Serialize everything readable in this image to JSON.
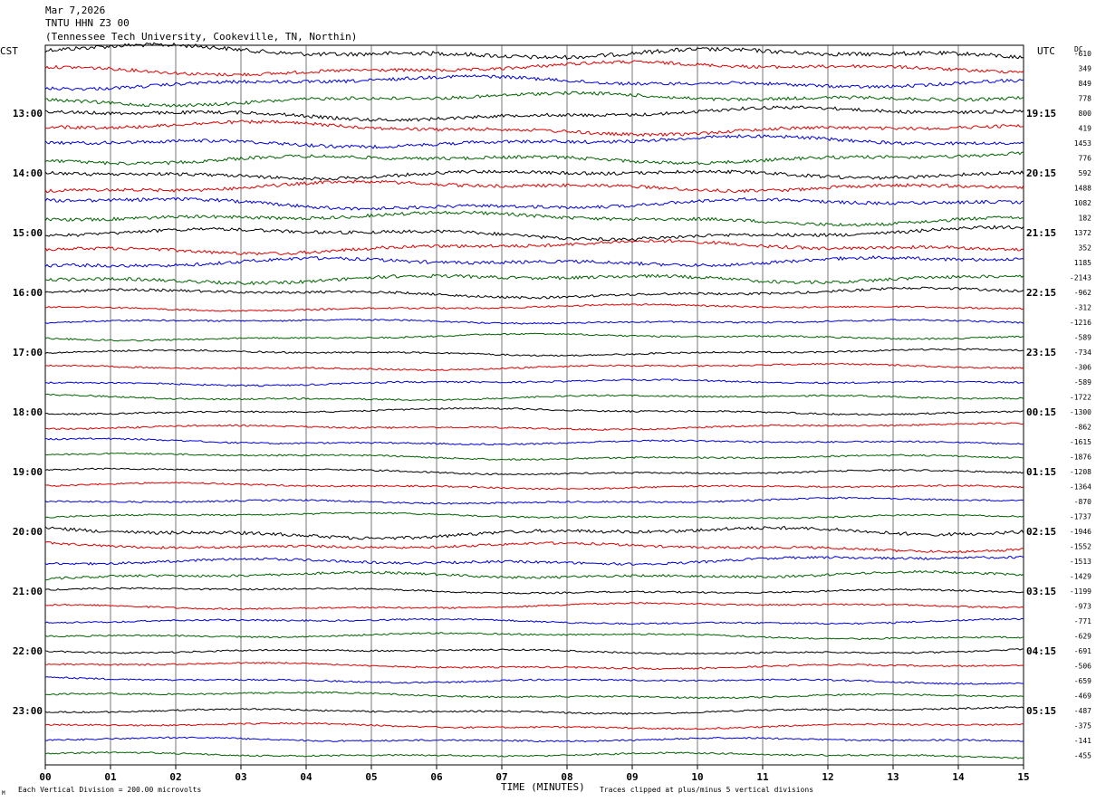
{
  "header": {
    "date": "Mar 7,2026",
    "station": "TNTU HHN Z3 00",
    "location": "(Tennessee Tech University, Cookeville, TN, Northin)"
  },
  "axis": {
    "left_tz": "CST",
    "right_tz": "UTC",
    "dc_label": "DC",
    "xlabel": "TIME (MINUTES)",
    "footnote_left": "Each Vertical Division =  200.00 microvolts",
    "footnote_right": "Traces clipped at plus/minus 5 vertical divisions",
    "corner_mark": "M"
  },
  "colors": {
    "trace_cycle": [
      "#000000",
      "#e00000",
      "#0000dd",
      "#006400"
    ],
    "grid": "#000000"
  },
  "chart_data": {
    "type": "line",
    "title": "",
    "x_ticks": [
      "00",
      "01",
      "02",
      "03",
      "04",
      "05",
      "06",
      "07",
      "08",
      "09",
      "10",
      "11",
      "12",
      "13",
      "14",
      "15"
    ],
    "xlim": [
      0,
      15
    ],
    "left_hour_labels": [
      "13:00",
      "14:00",
      "15:00",
      "16:00",
      "17:00",
      "18:00",
      "19:00",
      "20:00",
      "21:00",
      "22:00",
      "23:00"
    ],
    "right_hour_labels": [
      "19:15",
      "20:15",
      "21:15",
      "22:15",
      "23:15",
      "00:15",
      "01:15",
      "02:15",
      "03:15",
      "04:15",
      "05:15"
    ],
    "dc_offsets": [
      "-610",
      "349",
      "849",
      "778",
      "800",
      "419",
      "1453",
      "776",
      "592",
      "1488",
      "1082",
      "182",
      "1372",
      "352",
      "1185",
      "-2143",
      "-962",
      "-312",
      "-1216",
      "-589",
      "-734",
      "-306",
      "-589",
      "-1722",
      "-1300",
      "-862",
      "-1615",
      "-1876",
      "-1208",
      "-1364",
      "-870",
      "-1737",
      "-1946",
      "-1552",
      "-1513",
      "-1429",
      "-1199",
      "-973",
      "-771",
      "-629",
      "-691",
      "-506",
      "-659",
      "-469",
      "-487",
      "-375",
      "-141",
      "-455"
    ],
    "trace_count": 48,
    "minutes_per_trace": 15,
    "trace_amplitude_level": [
      5,
      4,
      4,
      4,
      4,
      4,
      4,
      4,
      4,
      4,
      4,
      4,
      4,
      4,
      4,
      4,
      3,
      2,
      2,
      2,
      2,
      2,
      2,
      2,
      2,
      2,
      2,
      2,
      2,
      2,
      2,
      2,
      4,
      3,
      3,
      3,
      2,
      2,
      2,
      2,
      2,
      2,
      2,
      2,
      2,
      2,
      2,
      2
    ]
  }
}
